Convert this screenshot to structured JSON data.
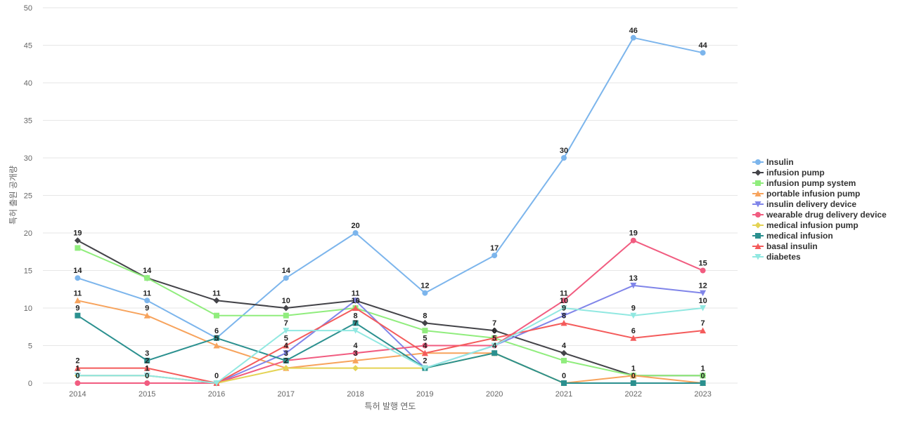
{
  "chart_data": {
    "type": "line",
    "xlabel": "특허 발행 연도",
    "ylabel": "특허 출원 공개량",
    "ylim": [
      0,
      50
    ],
    "yticks": [
      0,
      5,
      10,
      15,
      20,
      25,
      30,
      35,
      40,
      45,
      50
    ],
    "categories": [
      "2014",
      "2015",
      "2016",
      "2017",
      "2018",
      "2019",
      "2020",
      "2021",
      "2022",
      "2023"
    ],
    "grid": true,
    "legend_position": "right",
    "series": [
      {
        "name": "Insulin",
        "color": "#7cb5ec",
        "marker": "circle",
        "values": [
          14,
          11,
          6,
          14,
          20,
          12,
          17,
          30,
          46,
          44
        ],
        "show_labels": true
      },
      {
        "name": "infusion pump",
        "color": "#434348",
        "marker": "diamond",
        "values": [
          19,
          14,
          11,
          10,
          11,
          8,
          7,
          4,
          1,
          1
        ],
        "show_labels": true
      },
      {
        "name": "infusion pump system",
        "color": "#90ed7d",
        "marker": "square",
        "values": [
          18,
          14,
          9,
          9,
          10,
          7,
          6,
          3,
          1,
          1
        ],
        "show_labels": false
      },
      {
        "name": "portable infusion pump",
        "color": "#f7a35c",
        "marker": "triangle",
        "values": [
          11,
          9,
          5,
          2,
          3,
          4,
          4,
          0,
          1,
          0
        ],
        "show_labels": true
      },
      {
        "name": "insulin delivery device",
        "color": "#8085e9",
        "marker": "triangle-down",
        "values": [
          1,
          1,
          0,
          4,
          11,
          2,
          5,
          9,
          13,
          12
        ],
        "show_labels": true
      },
      {
        "name": "wearable drug delivery device",
        "color": "#f15c80",
        "marker": "circle",
        "values": [
          0,
          0,
          0,
          3,
          4,
          5,
          5,
          11,
          19,
          15
        ],
        "show_labels": true
      },
      {
        "name": "medical infusion pump",
        "color": "#e4d354",
        "marker": "diamond",
        "values": [
          1,
          1,
          0,
          2,
          2,
          2,
          4,
          0,
          0,
          0
        ],
        "show_labels": false
      },
      {
        "name": "medical infusion",
        "color": "#2b908f",
        "marker": "square",
        "values": [
          9,
          3,
          6,
          3,
          8,
          2,
          4,
          0,
          0,
          0
        ],
        "show_labels": true
      },
      {
        "name": "basal insulin",
        "color": "#f45b5b",
        "marker": "triangle",
        "values": [
          2,
          2,
          0,
          5,
          10,
          4,
          6,
          8,
          6,
          7
        ],
        "show_labels": true
      },
      {
        "name": "diabetes",
        "color": "#91e8e1",
        "marker": "triangle-down",
        "values": [
          1,
          1,
          0,
          7,
          7,
          2,
          5,
          10,
          9,
          10
        ],
        "show_labels": true
      }
    ],
    "data_labels": [
      {
        "category": "2014",
        "values": [
          "19",
          "14",
          "11",
          "9",
          "1"
        ]
      },
      {
        "category": "2015",
        "values": [
          "14",
          "11",
          "9",
          "3",
          "1"
        ]
      },
      {
        "category": "2016",
        "values": [
          "11",
          "9",
          "6",
          "0"
        ]
      },
      {
        "category": "2017",
        "values": [
          "14",
          "10",
          "7",
          "4",
          "2"
        ]
      },
      {
        "category": "2018",
        "values": [
          "20",
          "11",
          "8",
          "3"
        ]
      },
      {
        "category": "2019",
        "values": [
          "12",
          "8",
          "4",
          "2"
        ]
      },
      {
        "category": "2020",
        "values": [
          "17",
          "7",
          "4"
        ]
      },
      {
        "category": "2021",
        "values": [
          "30",
          "11",
          "9",
          "4",
          "0"
        ]
      },
      {
        "category": "2022",
        "values": [
          "46",
          "19",
          "13",
          "9",
          "6",
          "1"
        ]
      },
      {
        "category": "2023",
        "values": [
          "44",
          "15",
          "12",
          "10",
          "7",
          "1"
        ]
      }
    ]
  }
}
